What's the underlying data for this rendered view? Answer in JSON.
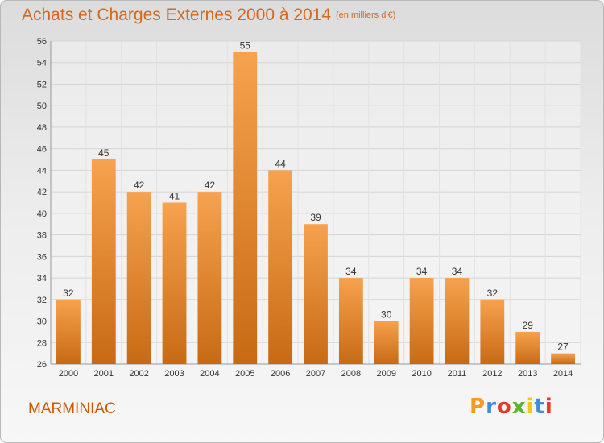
{
  "title": "Achats et Charges Externes 2000 à 2014",
  "subtitle": "(en milliers d'€)",
  "commune": "MARMINIAC",
  "logo": {
    "letters": [
      "P",
      "r",
      "o",
      "x",
      "i",
      "t",
      "i"
    ],
    "colors": [
      "#f59a23",
      "#3b8fd8",
      "#e23a2a",
      "#5cb531",
      "#f2c81e",
      "#3b8fd8",
      "#e23a2a"
    ]
  },
  "colors": {
    "bar_light": "#f6a24e",
    "bar_dark": "#c86a14",
    "accent": "#d2691e"
  },
  "chart_data": {
    "type": "bar",
    "categories": [
      "2000",
      "2001",
      "2002",
      "2003",
      "2004",
      "2005",
      "2006",
      "2007",
      "2008",
      "2009",
      "2010",
      "2011",
      "2012",
      "2013",
      "2014"
    ],
    "values": [
      32,
      45,
      42,
      41,
      42,
      55,
      44,
      39,
      34,
      30,
      34,
      34,
      32,
      29,
      27
    ],
    "ylim": [
      26,
      56
    ],
    "yticks": [
      26,
      28,
      30,
      32,
      34,
      36,
      38,
      40,
      42,
      44,
      46,
      48,
      50,
      52,
      54,
      56
    ],
    "grid": true,
    "xlabel": "",
    "ylabel": ""
  }
}
